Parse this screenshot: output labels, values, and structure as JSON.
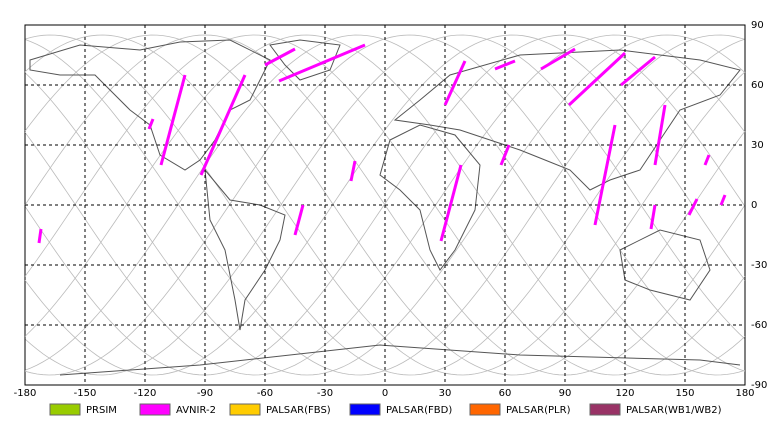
{
  "chart_data": {
    "type": "map",
    "xlim": [
      -180,
      180
    ],
    "ylim": [
      -90,
      90
    ],
    "xticks": [
      -180,
      -150,
      -120,
      -90,
      -60,
      -30,
      0,
      30,
      60,
      90,
      120,
      150,
      180
    ],
    "yticks": [
      -90,
      -60,
      -30,
      0,
      30,
      60,
      90
    ],
    "grid": true,
    "series": [
      {
        "name": "PRSIM",
        "color": "#99cc00"
      },
      {
        "name": "AVNIR-2",
        "color": "#ff00ff"
      },
      {
        "name": "PALSAR(FBS)",
        "color": "#ffcc00"
      },
      {
        "name": "PALSAR(FBD)",
        "color": "#0000ff"
      },
      {
        "name": "PALSAR(PLR)",
        "color": "#ff6600"
      },
      {
        "name": "PALSAR(WB1/WB2)",
        "color": "#993366"
      }
    ],
    "tracks": [
      {
        "lon": [
          -173,
          -172
        ],
        "lat": [
          -19,
          -12
        ]
      },
      {
        "lon": [
          -118,
          -116
        ],
        "lat": [
          38,
          43
        ]
      },
      {
        "lon": [
          -112,
          -100
        ],
        "lat": [
          20,
          65
        ]
      },
      {
        "lon": [
          -92,
          -70
        ],
        "lat": [
          15,
          65
        ]
      },
      {
        "lon": [
          -60,
          -45
        ],
        "lat": [
          70,
          78
        ]
      },
      {
        "lon": [
          -53,
          -10
        ],
        "lat": [
          62,
          80
        ]
      },
      {
        "lon": [
          -17,
          -15
        ],
        "lat": [
          12,
          22
        ]
      },
      {
        "lon": [
          -45,
          -41
        ],
        "lat": [
          -15,
          0
        ]
      },
      {
        "lon": [
          28,
          38
        ],
        "lat": [
          -18,
          20
        ]
      },
      {
        "lon": [
          30,
          40
        ],
        "lat": [
          50,
          72
        ]
      },
      {
        "lon": [
          58,
          62
        ],
        "lat": [
          20,
          30
        ]
      },
      {
        "lon": [
          55,
          65
        ],
        "lat": [
          68,
          72
        ]
      },
      {
        "lon": [
          78,
          95
        ],
        "lat": [
          68,
          78
        ]
      },
      {
        "lon": [
          92,
          120
        ],
        "lat": [
          50,
          76
        ]
      },
      {
        "lon": [
          105,
          115
        ],
        "lat": [
          -10,
          40
        ]
      },
      {
        "lon": [
          118,
          135
        ],
        "lat": [
          60,
          74
        ]
      },
      {
        "lon": [
          135,
          140
        ],
        "lat": [
          20,
          50
        ]
      },
      {
        "lon": [
          133,
          135
        ],
        "lat": [
          -12,
          0
        ]
      },
      {
        "lon": [
          160,
          162
        ],
        "lat": [
          20,
          25
        ]
      },
      {
        "lon": [
          152,
          156
        ],
        "lat": [
          -5,
          3
        ]
      },
      {
        "lon": [
          168,
          170
        ],
        "lat": [
          0,
          5
        ]
      }
    ]
  }
}
